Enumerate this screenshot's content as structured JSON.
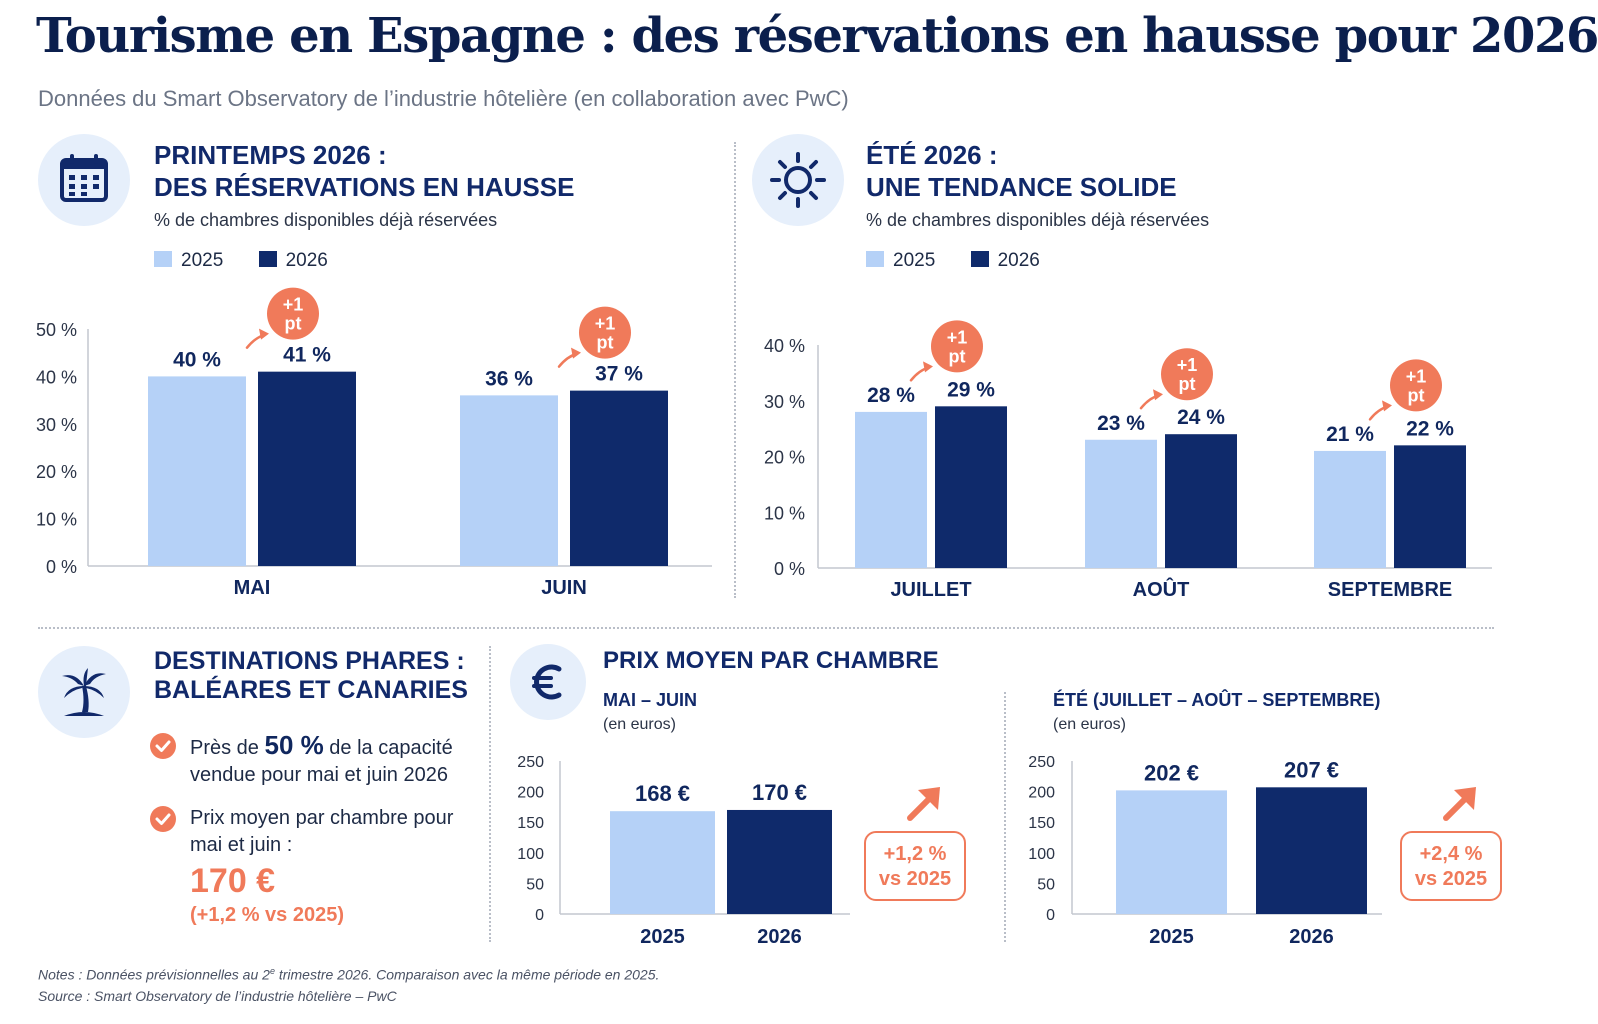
{
  "header": {
    "title": "Tourisme en Espagne : des réservations en hausse pour 2026",
    "subtitle": "Données du Smart Observatory de l’industrie hôtelière (en collaboration avec PwC)"
  },
  "colors": {
    "light_bar": "#b5d1f7",
    "dark_bar": "#0f2a6b",
    "accent": "#f07a5a",
    "navy": "#11296a",
    "icon_bg": "#e6effb"
  },
  "icons": {
    "spring": "calendar-icon",
    "summer": "sun-icon",
    "destinations": "palm-tree-icon",
    "price": "euro-icon",
    "bullet": "check-icon",
    "trend": "arrow-up-right-icon"
  },
  "spring": {
    "title_line1": "PRINTEMPS 2026 :",
    "title_line2": "DES RÉSERVATIONS EN HAUSSE",
    "metric_label": "% de chambres disponibles déjà réservées",
    "legend": [
      "2025",
      "2026"
    ]
  },
  "summer": {
    "title_line1": "ÉTÉ 2026 :",
    "title_line2": "UNE TENDANCE SOLIDE",
    "metric_label": "% de chambres disponibles déjà réservées",
    "legend": [
      "2025",
      "2026"
    ]
  },
  "destinations": {
    "title_line1": "DESTINATIONS PHARES :",
    "title_line2": "BALÉARES ET CANARIES",
    "bullet1_before": "Près de ",
    "bullet1_highlight": "50 %",
    "bullet1_after": " de la capacité vendue pour mai et juin 2026",
    "bullet2_text": "Prix moyen par chambre pour mai et juin :",
    "price_value": "170 €",
    "price_change": "(+1,2 % vs 2025)"
  },
  "price": {
    "title": "PRIX MOYEN PAR CHAMBRE",
    "left": {
      "heading": "MAI – JUIN",
      "unit": "(en euros)",
      "delta_line1": "+1,2 %",
      "delta_line2": "vs 2025"
    },
    "right": {
      "heading": "ÉTÉ (JUILLET – AOÛT – SEPTEMBRE)",
      "unit": "(en euros)",
      "delta_line1": "+2,4 %",
      "delta_line2": "vs 2025"
    }
  },
  "footer": {
    "notes_label": "Notes :",
    "notes_text1": " Données prévisionnelles au 2",
    "notes_sup": "e",
    "notes_text2": " trimestre 2026. Comparaison avec la même période en 2025.",
    "source_label": "Source :",
    "source_text": " Smart Observatory de l’industrie hôtelière – PwC"
  },
  "chart_data": [
    {
      "id": "spring",
      "type": "bar",
      "title": "PRINTEMPS 2026 : DES RÉSERVATIONS EN HAUSSE",
      "ylabel": "% de chambres disponibles déjà réservées",
      "categories": [
        "MAI",
        "JUIN"
      ],
      "series": [
        {
          "name": "2025",
          "values": [
            40,
            36
          ],
          "labels": [
            "40 %",
            "36 %"
          ]
        },
        {
          "name": "2026",
          "values": [
            41,
            37
          ],
          "labels": [
            "41 %",
            "37 %"
          ]
        }
      ],
      "ylim": [
        0,
        50
      ],
      "yticks": [
        0,
        10,
        20,
        30,
        40,
        50
      ],
      "ytick_labels": [
        "0 %",
        "10 %",
        "20 %",
        "30 %",
        "40 %",
        "50 %"
      ],
      "annotation_line1": "+1",
      "annotation_line2": "pt",
      "annotations": [
        "+1 pt",
        "+1 pt"
      ]
    },
    {
      "id": "summer",
      "type": "bar",
      "title": "ÉTÉ 2026 : UNE TENDANCE SOLIDE",
      "ylabel": "% de chambres disponibles déjà réservées",
      "categories": [
        "JUILLET",
        "AOÛT",
        "SEPTEMBRE"
      ],
      "series": [
        {
          "name": "2025",
          "values": [
            28,
            23,
            21
          ],
          "labels": [
            "28 %",
            "23 %",
            "21 %"
          ]
        },
        {
          "name": "2026",
          "values": [
            29,
            24,
            22
          ],
          "labels": [
            "29 %",
            "24 %",
            "22 %"
          ]
        }
      ],
      "ylim": [
        0,
        40
      ],
      "yticks": [
        0,
        10,
        20,
        30,
        40
      ],
      "ytick_labels": [
        "0 %",
        "10 %",
        "20 %",
        "30 %",
        "40 %"
      ],
      "annotation_line1": "+1",
      "annotation_line2": "pt",
      "annotations": [
        "+1 pt",
        "+1 pt",
        "+1 pt"
      ]
    },
    {
      "id": "price_may_june",
      "type": "bar",
      "title": "MAI – JUIN",
      "ylabel": "(en euros)",
      "categories": [
        "2025",
        "2026"
      ],
      "values": [
        168,
        170
      ],
      "labels": [
        "168 €",
        "170 €"
      ],
      "ylim": [
        0,
        250
      ],
      "yticks": [
        0,
        50,
        100,
        150,
        200,
        250
      ],
      "ytick_labels": [
        "0",
        "50",
        "100",
        "150",
        "200",
        "250"
      ]
    },
    {
      "id": "price_summer",
      "type": "bar",
      "title": "ÉTÉ (JUILLET – AOÛT – SEPTEMBRE)",
      "ylabel": "(en euros)",
      "categories": [
        "2025",
        "2026"
      ],
      "values": [
        202,
        207
      ],
      "labels": [
        "202 €",
        "207 €"
      ],
      "ylim": [
        0,
        250
      ],
      "yticks": [
        0,
        50,
        100,
        150,
        200,
        250
      ],
      "ytick_labels": [
        "0",
        "50",
        "100",
        "150",
        "200",
        "250"
      ]
    }
  ]
}
